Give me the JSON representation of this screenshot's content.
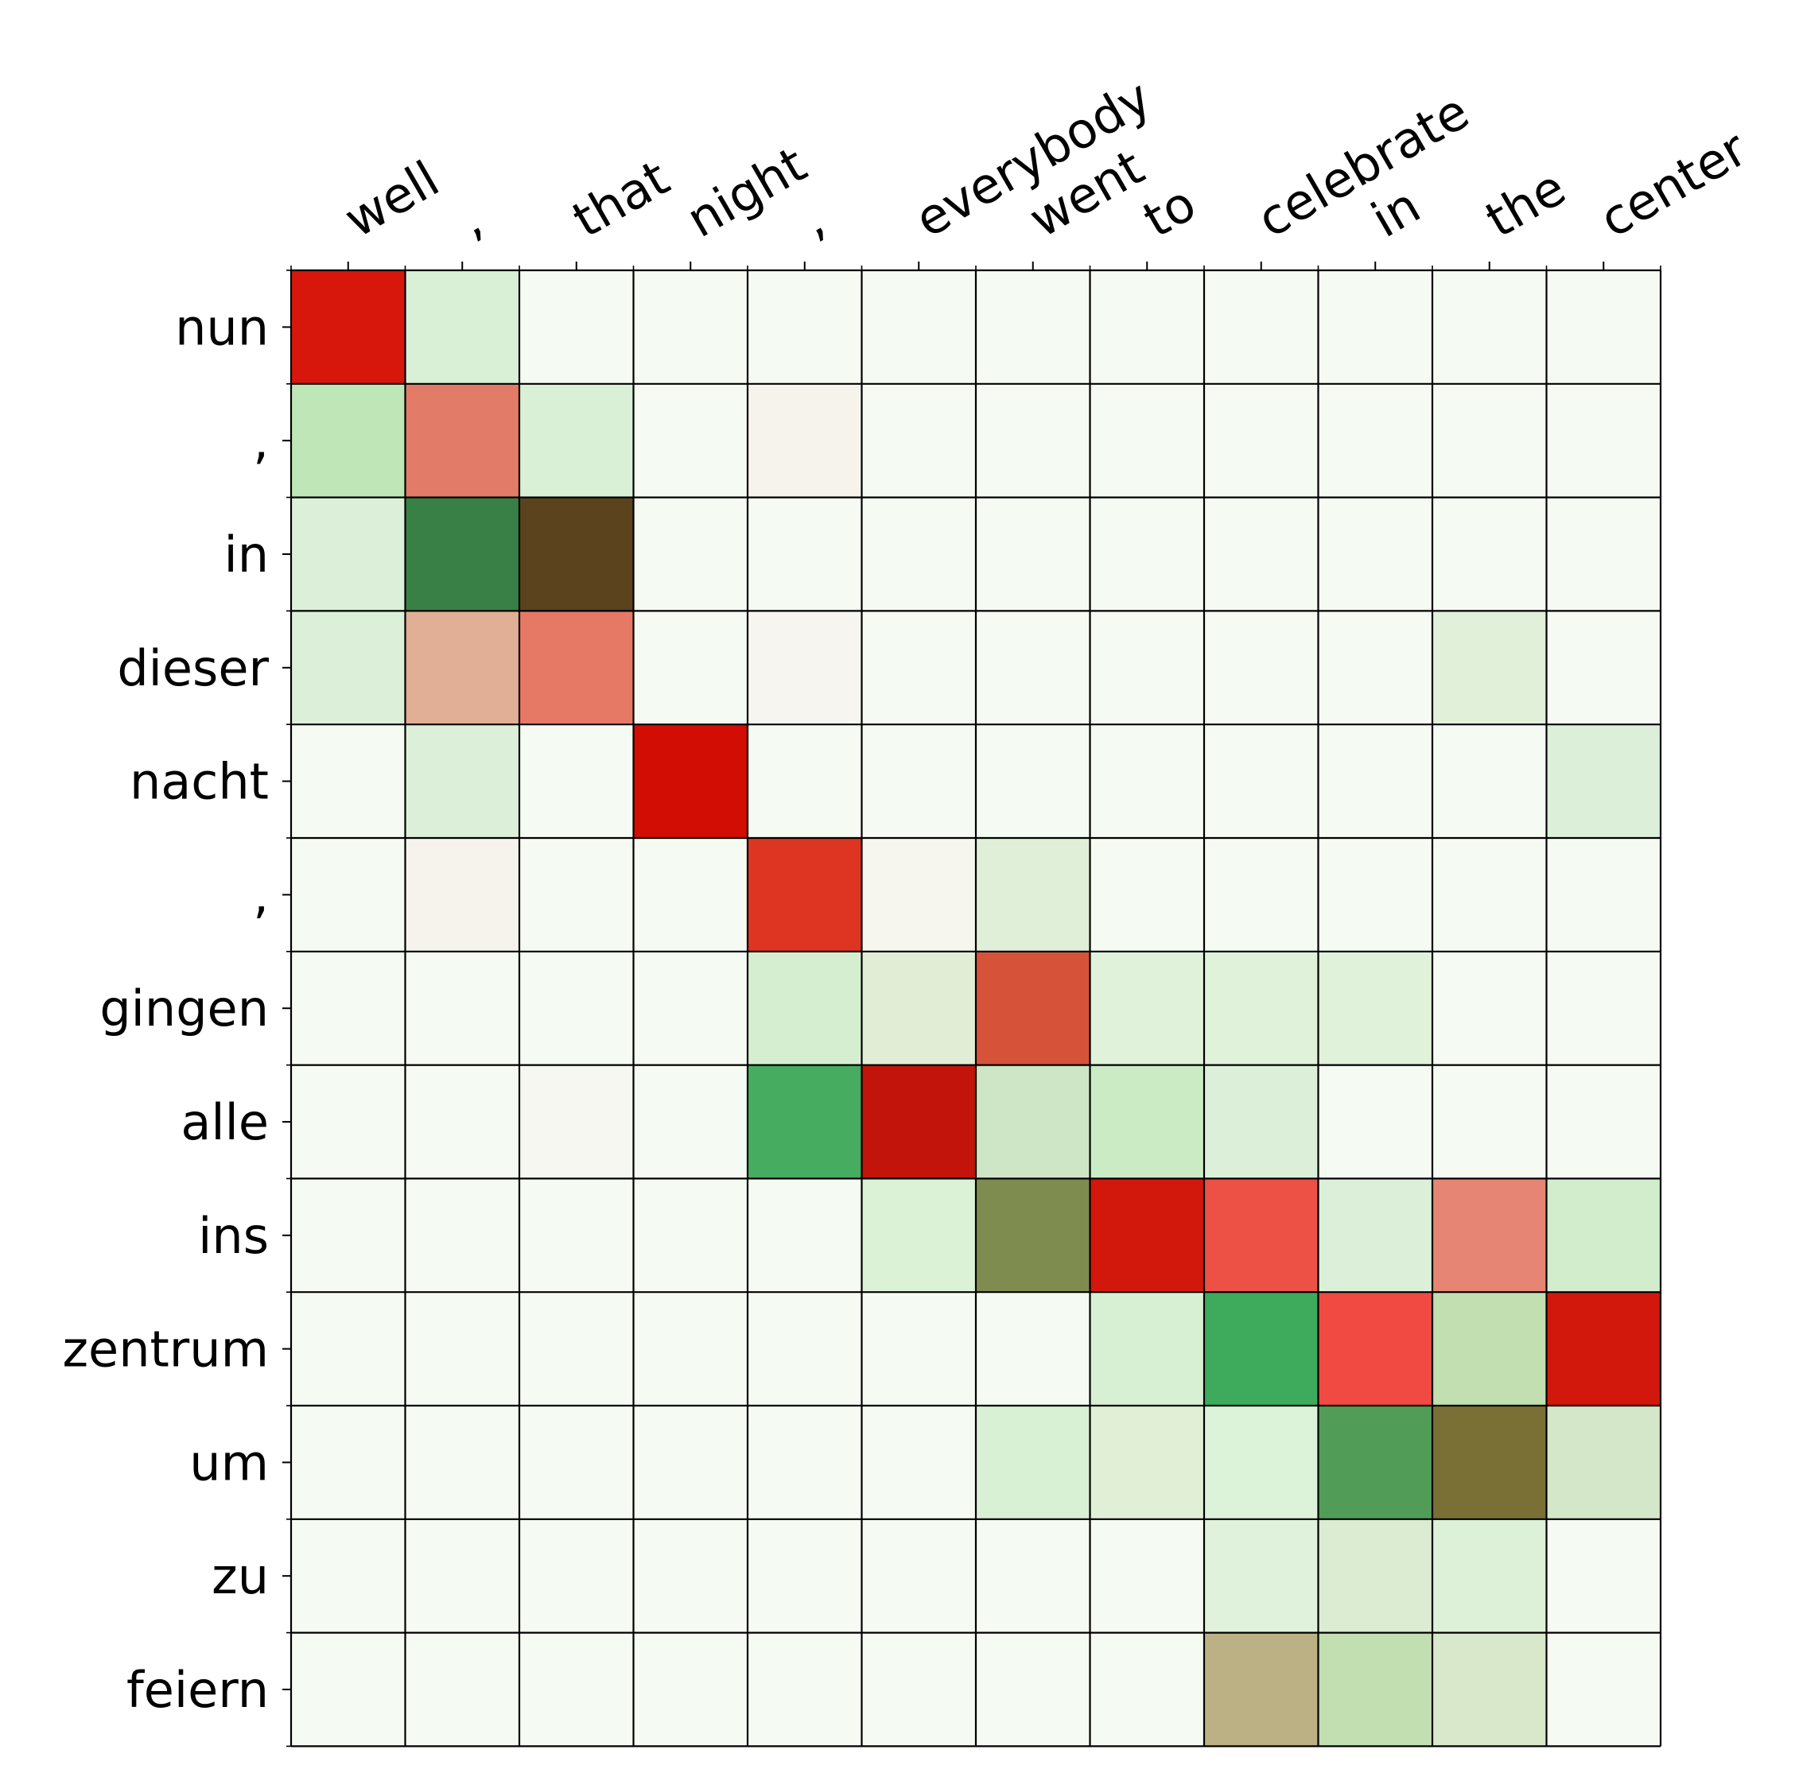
{
  "chart_data": {
    "type": "heatmap",
    "x_categories": [
      "well",
      ",",
      "that",
      "night",
      ",",
      "everybody",
      "went",
      "to",
      "celebrate",
      "in",
      "the",
      "center"
    ],
    "y_categories": [
      "nun",
      ",",
      "in",
      "dieser",
      "nacht",
      ",",
      "gingen",
      "alle",
      "ins",
      "zentrum",
      "um",
      "zu",
      "feiern"
    ],
    "colors": [
      [
        "#d7170c",
        "#daf0d6",
        "#f5faf2",
        "#f5faf2",
        "#f5faf2",
        "#f5faf2",
        "#f5faf2",
        "#f5faf2",
        "#f5faf2",
        "#f5faf2",
        "#f5faf2",
        "#f5faf2"
      ],
      [
        "#bee6b7",
        "#e27b67",
        "#daf0d6",
        "#f5faf2",
        "#f6f3ec",
        "#f5faf2",
        "#f5faf2",
        "#f5faf2",
        "#f5faf2",
        "#f5faf2",
        "#f5faf2",
        "#f5faf2"
      ],
      [
        "#dcf0d9",
        "#388046",
        "#5b431e",
        "#f5faf2",
        "#f5faf2",
        "#f5faf2",
        "#f5faf2",
        "#f5faf2",
        "#f5faf2",
        "#f5faf2",
        "#f5faf2",
        "#f5faf2"
      ],
      [
        "#dcf0d9",
        "#e0af96",
        "#e57966",
        "#f5faf2",
        "#f6f5ef",
        "#f5faf2",
        "#f5faf2",
        "#f5faf2",
        "#f5faf2",
        "#f5faf2",
        "#e0f0d9",
        "#f5faf2"
      ],
      [
        "#f5faf2",
        "#dcf0d9",
        "#f5faf2",
        "#d20d04",
        "#f5faf2",
        "#f5faf2",
        "#f5faf2",
        "#f5faf2",
        "#f5faf2",
        "#f5faf2",
        "#f5faf2",
        "#dcf0d9"
      ],
      [
        "#f5faf2",
        "#f6f3ec",
        "#f5faf2",
        "#f5faf2",
        "#de3522",
        "#f6f6ef",
        "#e0efd7",
        "#f5faf2",
        "#f5faf2",
        "#f5faf2",
        "#f5faf2",
        "#f5faf2"
      ],
      [
        "#f5faf2",
        "#f5faf2",
        "#f5faf2",
        "#f5faf2",
        "#d5eed0",
        "#e2edd6",
        "#d6533a",
        "#e0f2da",
        "#e0f2da",
        "#e0f2da",
        "#f5faf2",
        "#f5faf2"
      ],
      [
        "#f5faf2",
        "#f5faf2",
        "#f6f7f0",
        "#f5faf2",
        "#46ac5f",
        "#c2140a",
        "#cfe6c6",
        "#cbebc5",
        "#dcf0d9",
        "#f5faf2",
        "#f5faf2",
        "#f5faf2"
      ],
      [
        "#f5faf2",
        "#f5faf2",
        "#f5faf2",
        "#f5faf2",
        "#f5faf2",
        "#dcf2d6",
        "#7e8c4f",
        "#d2170c",
        "#ed5145",
        "#dcf0d9",
        "#e68573",
        "#d2edcc"
      ],
      [
        "#f5faf2",
        "#f5faf2",
        "#f5faf2",
        "#f5faf2",
        "#f5faf2",
        "#f5faf2",
        "#f5faf2",
        "#d7f0d3",
        "#3daa5c",
        "#f04a43",
        "#c1dfb0",
        "#d2170c"
      ],
      [
        "#f5faf2",
        "#f5faf2",
        "#f5faf2",
        "#f5faf2",
        "#f5faf2",
        "#f5faf2",
        "#d8f0d4",
        "#e2efd7",
        "#dcf2d9",
        "#519d58",
        "#7a7036",
        "#d5e7c9"
      ],
      [
        "#f5faf2",
        "#f5faf2",
        "#f5faf2",
        "#f5faf2",
        "#f5faf2",
        "#f5faf2",
        "#f5faf2",
        "#f5faf2",
        "#e0f2db",
        "#dcecd2",
        "#dcf1d7",
        "#f5faf2"
      ],
      [
        "#f5faf2",
        "#f5faf2",
        "#f5faf2",
        "#f5faf2",
        "#f5faf2",
        "#f5faf2",
        "#f5faf2",
        "#f5faf2",
        "#bcb184",
        "#c1dfb0",
        "#d9e8cb",
        "#f5faf2"
      ]
    ],
    "grid": true,
    "legend": "none"
  }
}
